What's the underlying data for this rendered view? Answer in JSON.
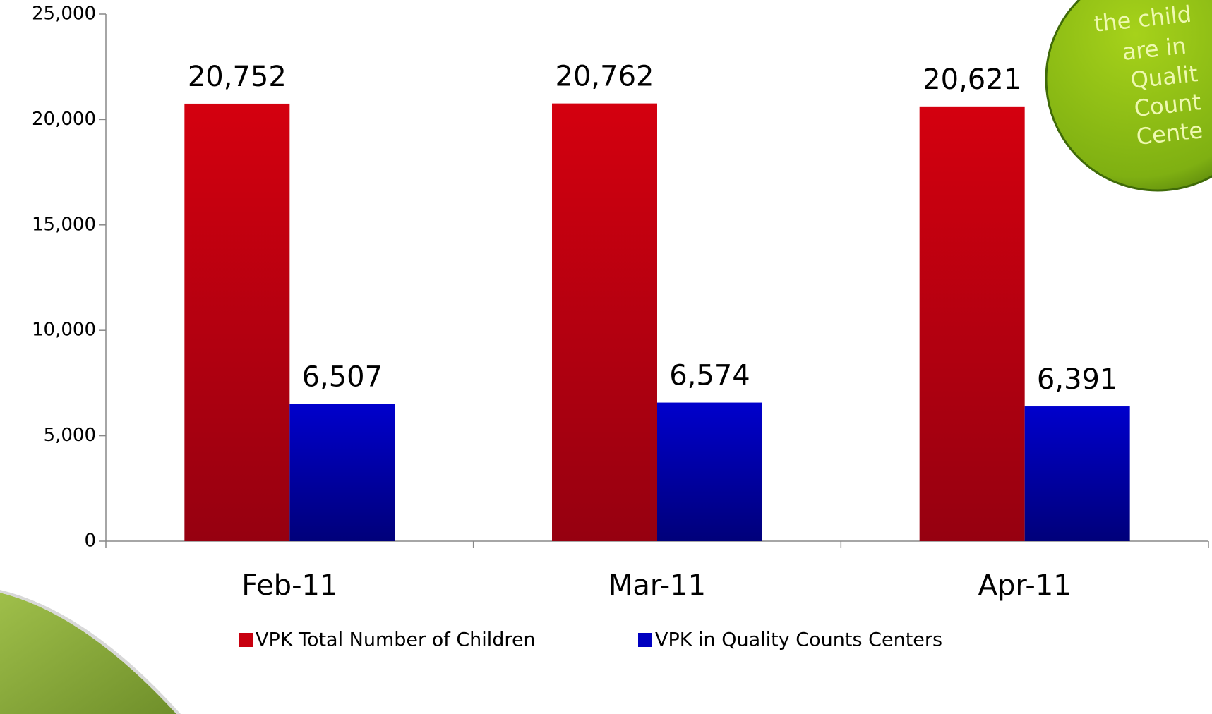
{
  "chart_data": {
    "type": "bar",
    "categories": [
      "Feb-11",
      "Mar-11",
      "Apr-11"
    ],
    "series": [
      {
        "name": "VPK Total Number of Children",
        "color": "#c8000f",
        "values": [
          20752,
          20762,
          20621
        ],
        "value_labels": [
          "20,752",
          "20,762",
          "20,621"
        ]
      },
      {
        "name": "VPK in Quality Counts Centers",
        "color": "#0000c0",
        "values": [
          6507,
          6574,
          6391
        ],
        "value_labels": [
          "6,507",
          "6,574",
          "6,391"
        ]
      }
    ],
    "ylim": [
      0,
      25000
    ],
    "yticks": [
      0,
      {
        "value": 5000,
        "label": "5,000"
      },
      {
        "value": 10000,
        "label": "10,000"
      },
      {
        "value": 15000,
        "label": "15,000"
      },
      {
        "value": 20000,
        "label": "20,000"
      },
      {
        "value": 25000,
        "label": "25,000"
      }
    ],
    "annotation": [
      "the child",
      "are in",
      "Qualit",
      "Count",
      "Cente"
    ]
  }
}
